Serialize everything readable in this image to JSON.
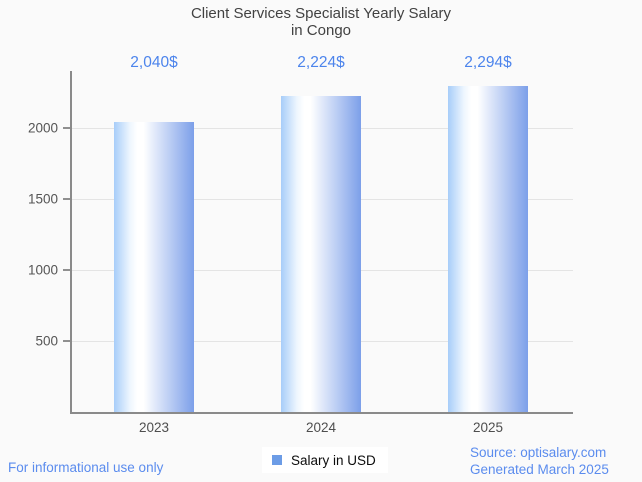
{
  "chart": {
    "title_line1": "Client Services Specialist Yearly Salary",
    "title_line2": "in Congo"
  },
  "chart_data": {
    "type": "bar",
    "title": "Client Services Specialist Yearly Salary in Congo",
    "categories": [
      "2023",
      "2024",
      "2025"
    ],
    "values": [
      2040,
      2224,
      2294
    ],
    "value_labels": [
      "2,040$",
      "2,224$",
      "2,294$"
    ],
    "series": [
      {
        "name": "Salary in USD",
        "values": [
          2040,
          2224,
          2294
        ]
      }
    ],
    "xlabel": "",
    "ylabel": "",
    "ylim": [
      0,
      2400
    ],
    "yticks": [
      500,
      1000,
      1500,
      2000
    ],
    "grid": true,
    "legend_position": "bottom-center"
  },
  "legend": {
    "label": "Salary in USD",
    "swatch_color": "#6c9ce6"
  },
  "footer": {
    "disclaimer": "For informational use only",
    "source": "Source: optisalary.com",
    "generated": "Generated March 2025"
  },
  "colors": {
    "background": "#fafafa",
    "title_text": "#424242",
    "value_label_blue": "#4c84ec",
    "footer_blue": "#5b8cee",
    "axis": "#8a8a8a",
    "gridline": "#e4e4e4",
    "tick_text": "#555555",
    "bar_gradient_left": "#a7cdf9",
    "bar_gradient_mid": "#ffffff",
    "bar_gradient_right": "#7c9fe9"
  }
}
